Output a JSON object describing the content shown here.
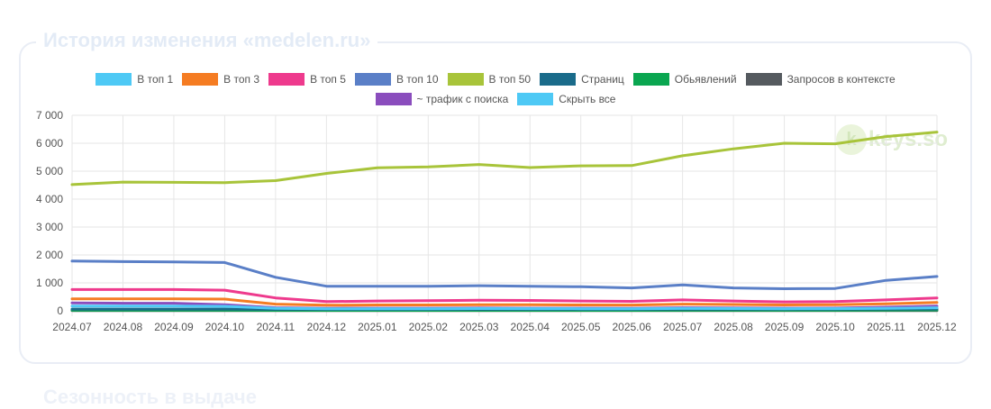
{
  "panel": {
    "title": "История изменения «medelen.ru»",
    "next_title": "Сезонность в выдаче"
  },
  "watermark": {
    "text": "keys.so"
  },
  "legend": [
    {
      "label": "В топ 1",
      "color": "#4ec9f5"
    },
    {
      "label": "В топ 3",
      "color": "#f57c22"
    },
    {
      "label": "В топ 5",
      "color": "#ee3a8d"
    },
    {
      "label": "В топ 10",
      "color": "#5a7fc7"
    },
    {
      "label": "В топ 50",
      "color": "#a8c43a"
    },
    {
      "label": "Страниц",
      "color": "#1a6b8a"
    },
    {
      "label": "Обьявлений",
      "color": "#0aa650"
    },
    {
      "label": "Запросов в контексте",
      "color": "#555a5f"
    },
    {
      "label": "~ трафик с поиска",
      "color": "#8a4dbd"
    },
    {
      "label": "Скрыть все",
      "color": "#4ec9f5"
    }
  ],
  "chart_data": {
    "type": "line",
    "categories": [
      "2024.07",
      "2024.08",
      "2024.09",
      "2024.10",
      "2024.11",
      "2024.12",
      "2025.01",
      "2025.02",
      "2025.03",
      "2025.04",
      "2025.05",
      "2025.06",
      "2025.07",
      "2025.08",
      "2025.09",
      "2025.10",
      "2025.11",
      "2025.12"
    ],
    "y_ticks": [
      "0",
      "1 000",
      "2 000",
      "3 000",
      "4 000",
      "5 000",
      "6 000",
      "7 000"
    ],
    "ylim": [
      0,
      7000
    ],
    "grid": true,
    "legend_position": "top",
    "series": [
      {
        "name": "В топ 50",
        "color": "#a8c43a",
        "values": [
          4520,
          4610,
          4600,
          4590,
          4660,
          4920,
          5120,
          5150,
          5240,
          5130,
          5190,
          5200,
          5550,
          5800,
          6000,
          5980,
          6240,
          6400
        ]
      },
      {
        "name": "В топ 10",
        "color": "#5a7fc7",
        "values": [
          1780,
          1760,
          1750,
          1730,
          1200,
          880,
          880,
          880,
          900,
          880,
          860,
          820,
          930,
          820,
          790,
          800,
          1090,
          1230
        ]
      },
      {
        "name": "В топ 5",
        "color": "#ee3a8d",
        "values": [
          760,
          760,
          760,
          740,
          460,
          330,
          350,
          360,
          380,
          370,
          350,
          340,
          390,
          350,
          320,
          330,
          390,
          460
        ]
      },
      {
        "name": "В топ 3",
        "color": "#f57c22",
        "values": [
          430,
          430,
          430,
          420,
          240,
          200,
          210,
          210,
          220,
          215,
          210,
          205,
          240,
          225,
          210,
          215,
          250,
          300
        ]
      },
      {
        "name": "В топ 1",
        "color": "#4ec9f5",
        "values": [
          170,
          170,
          170,
          160,
          90,
          70,
          75,
          75,
          80,
          78,
          75,
          72,
          85,
          80,
          75,
          78,
          90,
          110
        ]
      },
      {
        "name": "~ трафик с поиска",
        "color": "#8a4dbd",
        "values": [
          280,
          270,
          270,
          220,
          110,
          90,
          95,
          95,
          100,
          95,
          92,
          90,
          110,
          100,
          95,
          98,
          130,
          170
        ]
      },
      {
        "name": "Страниц",
        "color": "#1a6b8a",
        "values": [
          60,
          60,
          60,
          60,
          50,
          50,
          50,
          50,
          50,
          50,
          50,
          50,
          55,
          55,
          55,
          55,
          60,
          65
        ]
      },
      {
        "name": "Обьявлений",
        "color": "#0aa650",
        "values": [
          20,
          20,
          20,
          20,
          15,
          15,
          15,
          15,
          15,
          15,
          15,
          15,
          20,
          20,
          20,
          20,
          25,
          30
        ]
      },
      {
        "name": "Запросов в контексте",
        "color": "#555a5f",
        "values": [
          5,
          5,
          5,
          5,
          5,
          5,
          5,
          5,
          5,
          5,
          5,
          5,
          5,
          5,
          5,
          5,
          5,
          5
        ]
      }
    ]
  }
}
